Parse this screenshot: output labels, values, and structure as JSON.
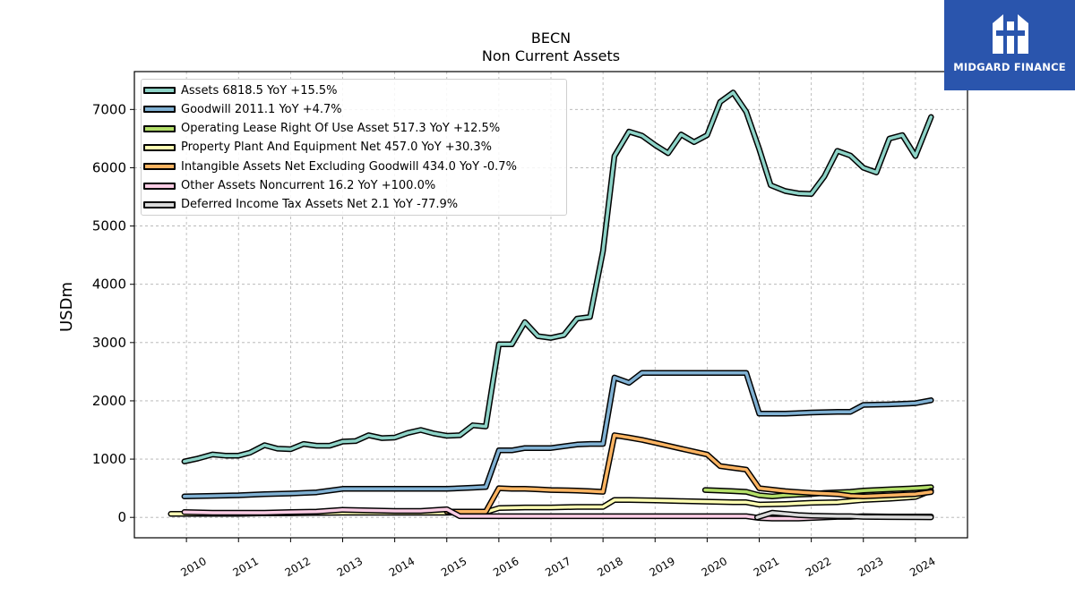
{
  "header": {
    "ticker": "BECN",
    "subtitle": "Non Current  Assets"
  },
  "logo": {
    "text": "MIDGARD FINANCE",
    "icon": "midgard-logo-icon"
  },
  "legend": [
    {
      "label": "Assets  6818.5 YoY +15.5%",
      "color": "#8dd3c7"
    },
    {
      "label": "Goodwill  2011.1 YoY +4.7%",
      "color": "#80b1d3"
    },
    {
      "label": "Operating Lease Right Of Use Asset  517.3 YoY +12.5%",
      "color": "#b3de69"
    },
    {
      "label": "Property Plant And Equipment Net  457.0 YoY +30.3%",
      "color": "#ffffb3"
    },
    {
      "label": "Intangible Assets Net Excluding Goodwill  434.0 YoY -0.7%",
      "color": "#fdb462"
    },
    {
      "label": "Other Assets Noncurrent  16.2 YoY +100.0%",
      "color": "#fccde5"
    },
    {
      "label": "Deferred Income Tax Assets Net  2.1 YoY -77.9%",
      "color": "#d9d9d9"
    }
  ],
  "chart_data": {
    "type": "line",
    "title": "BECN",
    "subtitle": "Non Current  Assets",
    "xlabel": "",
    "ylabel": "USDm",
    "xlim": [
      2009.0,
      2025.0
    ],
    "ylim": [
      -350,
      7650
    ],
    "yticks": [
      0,
      1000,
      2000,
      3000,
      4000,
      5000,
      6000,
      7000
    ],
    "xticks": [
      2010,
      2011,
      2012,
      2013,
      2014,
      2015,
      2016,
      2017,
      2018,
      2019,
      2020,
      2021,
      2022,
      2023,
      2024
    ],
    "grid": true,
    "legend_position": "top-left",
    "series": [
      {
        "name": "Assets  6818.5 YoY +15.5%",
        "color": "#8dd3c7",
        "x": [
          2009.96,
          2010.22,
          2010.5,
          2010.75,
          2011.0,
          2011.22,
          2011.5,
          2011.75,
          2012.0,
          2012.25,
          2012.5,
          2012.75,
          2013.0,
          2013.25,
          2013.5,
          2013.75,
          2014.0,
          2014.25,
          2014.5,
          2014.75,
          2015.0,
          2015.25,
          2015.5,
          2015.75,
          2016.0,
          2016.25,
          2016.5,
          2016.75,
          2017.0,
          2017.25,
          2017.5,
          2017.75,
          2018.0,
          2018.22,
          2018.5,
          2018.75,
          2019.0,
          2019.25,
          2019.5,
          2019.75,
          2020.0,
          2020.25,
          2020.5,
          2020.75,
          2021.0,
          2021.22,
          2021.5,
          2021.75,
          2022.0,
          2022.25,
          2022.5,
          2022.75,
          2023.0,
          2023.25,
          2023.5,
          2023.75,
          2024.0,
          2024.3
        ],
        "y": [
          960,
          1010,
          1080,
          1060,
          1060,
          1110,
          1240,
          1180,
          1170,
          1260,
          1230,
          1230,
          1300,
          1310,
          1410,
          1360,
          1370,
          1450,
          1500,
          1440,
          1400,
          1410,
          1580,
          1560,
          2970,
          2970,
          3350,
          3110,
          3080,
          3130,
          3410,
          3440,
          4570,
          6200,
          6620,
          6550,
          6390,
          6250,
          6570,
          6440,
          6560,
          7130,
          7290,
          6960,
          6320,
          5700,
          5600,
          5560,
          5550,
          5850,
          6290,
          6210,
          6000,
          5920,
          6500,
          6560,
          6200,
          6870
        ]
      },
      {
        "name": "Goodwill  2011.1 YoY +4.7%",
        "color": "#80b1d3",
        "x": [
          2009.96,
          2010.5,
          2011.0,
          2011.5,
          2012.0,
          2012.5,
          2013.0,
          2013.5,
          2014.0,
          2014.5,
          2015.0,
          2015.5,
          2015.75,
          2016.0,
          2016.25,
          2016.5,
          2016.75,
          2017.0,
          2017.5,
          2017.75,
          2018.0,
          2018.22,
          2018.5,
          2018.75,
          2019.0,
          2019.5,
          2020.0,
          2020.5,
          2020.75,
          2021.0,
          2021.5,
          2022.0,
          2022.5,
          2022.75,
          2023.0,
          2023.5,
          2024.0,
          2024.3
        ],
        "y": [
          360,
          370,
          380,
          400,
          410,
          430,
          490,
          490,
          490,
          490,
          490,
          510,
          520,
          1150,
          1150,
          1190,
          1190,
          1190,
          1250,
          1260,
          1260,
          2400,
          2310,
          2480,
          2480,
          2480,
          2480,
          2480,
          2480,
          1780,
          1780,
          1800,
          1810,
          1810,
          1930,
          1940,
          1960,
          2010
        ]
      },
      {
        "name": "Operating Lease Right Of Use Asset  517.3 YoY +12.5%",
        "color": "#b3de69",
        "x": [
          2019.96,
          2020.25,
          2020.5,
          2020.75,
          2021.0,
          2021.25,
          2021.5,
          2021.75,
          2022.0,
          2022.25,
          2022.5,
          2022.75,
          2023.0,
          2023.5,
          2024.0,
          2024.3
        ],
        "y": [
          470,
          460,
          450,
          440,
          380,
          360,
          380,
          390,
          400,
          420,
          430,
          440,
          460,
          480,
          500,
          517
        ]
      },
      {
        "name": "Property Plant And Equipment Net  457.0 YoY +30.3%",
        "color": "#ffffb3",
        "x": [
          2009.7,
          2009.96,
          2010.5,
          2011.0,
          2011.5,
          2012.0,
          2012.5,
          2013.0,
          2013.5,
          2014.0,
          2014.5,
          2015.0,
          2015.5,
          2015.75,
          2016.0,
          2016.5,
          2017.0,
          2017.5,
          2017.75,
          2018.0,
          2018.22,
          2018.5,
          2019.0,
          2019.5,
          2020.0,
          2020.5,
          2020.75,
          2021.0,
          2021.5,
          2022.0,
          2022.5,
          2022.75,
          2023.0,
          2023.5,
          2024.0,
          2024.3
        ],
        "y": [
          60,
          60,
          60,
          60,
          70,
          70,
          75,
          80,
          80,
          80,
          80,
          80,
          90,
          90,
          160,
          170,
          170,
          180,
          180,
          180,
          300,
          300,
          290,
          280,
          270,
          260,
          260,
          220,
          230,
          250,
          260,
          280,
          300,
          320,
          350,
          457
        ]
      },
      {
        "name": "Intangible Assets Net Excluding Goodwill  434.0 YoY -0.7%",
        "color": "#fdb462",
        "x": [
          2015.0,
          2015.5,
          2015.75,
          2016.0,
          2016.25,
          2016.5,
          2016.75,
          2017.0,
          2017.5,
          2017.75,
          2018.0,
          2018.22,
          2018.5,
          2018.75,
          2019.0,
          2019.5,
          2020.0,
          2020.25,
          2020.5,
          2020.75,
          2021.0,
          2021.5,
          2022.0,
          2022.5,
          2022.75,
          2023.0,
          2023.5,
          2024.0,
          2024.3
        ],
        "y": [
          100,
          100,
          100,
          500,
          490,
          490,
          480,
          470,
          460,
          450,
          440,
          1410,
          1370,
          1330,
          1280,
          1180,
          1080,
          880,
          850,
          820,
          500,
          450,
          420,
          400,
          370,
          360,
          380,
          400,
          434
        ]
      },
      {
        "name": "Other Assets Noncurrent  16.2 YoY +100.0%",
        "color": "#fccde5",
        "x": [
          2009.96,
          2010.5,
          2011.0,
          2011.5,
          2012.0,
          2012.5,
          2013.0,
          2013.5,
          2014.0,
          2014.5,
          2015.0,
          2015.25,
          2015.5,
          2016.0,
          2016.5,
          2017.0,
          2017.5,
          2018.0,
          2018.5,
          2019.0,
          2019.5,
          2020.0,
          2020.5,
          2020.75,
          2021.0,
          2021.25,
          2021.5,
          2021.75,
          2022.0,
          2022.5,
          2022.75,
          2023.0,
          2023.5,
          2024.0,
          2024.3
        ],
        "y": [
          90,
          80,
          80,
          80,
          90,
          100,
          130,
          120,
          110,
          110,
          140,
          20,
          20,
          20,
          20,
          20,
          20,
          20,
          20,
          20,
          20,
          20,
          20,
          20,
          -10,
          -20,
          -20,
          -20,
          -10,
          10,
          10,
          20,
          16,
          16,
          16
        ]
      },
      {
        "name": "Deferred Income Tax Assets Net  2.1 YoY -77.9%",
        "color": "#d9d9d9",
        "x": [
          2020.96,
          2021.25,
          2021.5,
          2021.75,
          2022.0,
          2022.5,
          2022.75,
          2023.0,
          2023.5,
          2024.0,
          2024.3
        ],
        "y": [
          0,
          80,
          60,
          40,
          30,
          20,
          20,
          10,
          5,
          3,
          2
        ]
      }
    ]
  }
}
